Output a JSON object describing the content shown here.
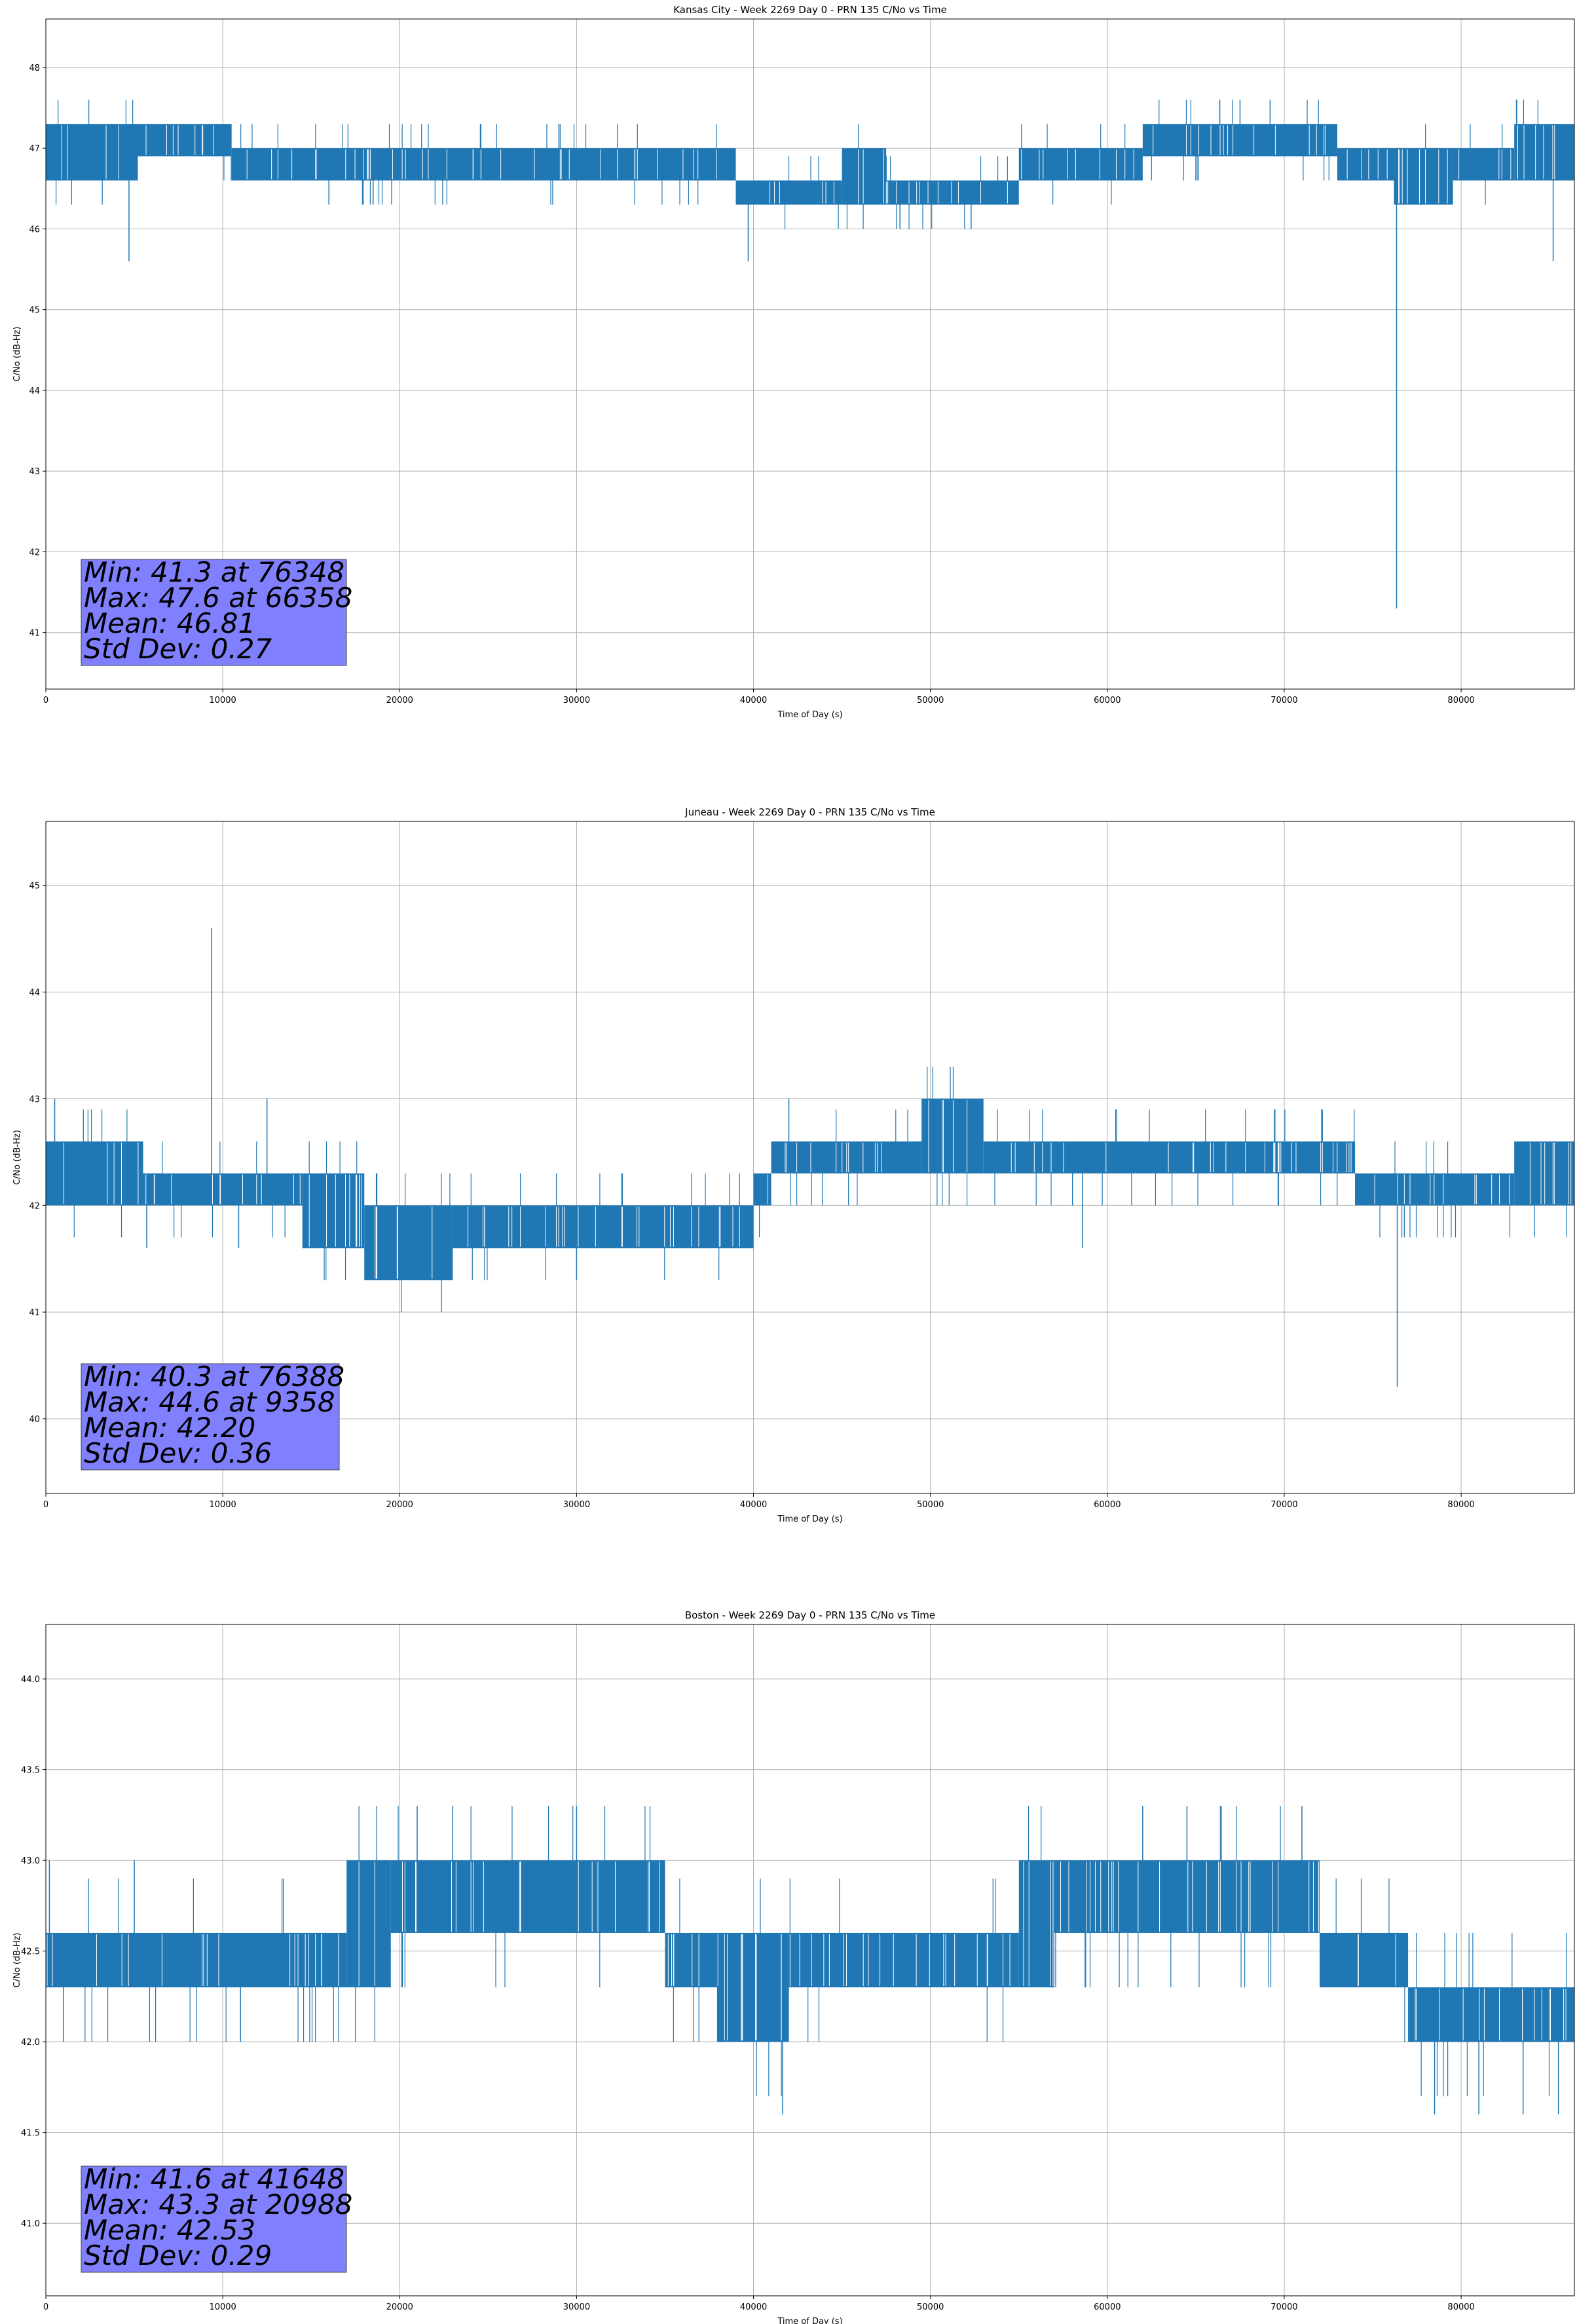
{
  "chart_data": [
    {
      "type": "line",
      "title": "Kansas City - Week 2269 Day 0 - PRN 135 C/No vs Time",
      "xlabel": "Time of Day (s)",
      "ylabel": "C/No (dB-Hz)",
      "xlim": [
        0,
        86400
      ],
      "ylim": [
        40.3,
        48.6
      ],
      "xticks": [
        0,
        10000,
        20000,
        30000,
        40000,
        50000,
        60000,
        70000,
        80000
      ],
      "xtick_labels": [
        "0",
        "10000",
        "20000",
        "30000",
        "40000",
        "50000",
        "60000",
        "70000",
        "80000"
      ],
      "yticks": [
        41,
        42,
        43,
        44,
        45,
        46,
        47,
        48
      ],
      "ytick_labels": [
        "41",
        "42",
        "43",
        "44",
        "45",
        "46",
        "47",
        "48"
      ],
      "grid": true,
      "line_color": "#1f77b4",
      "stats_box_color": "#8080ff",
      "bands": [
        {
          "x0": 0,
          "x1": 5200,
          "lo": 46.6,
          "hi": 47.3
        },
        {
          "x0": 5200,
          "x1": 10500,
          "lo": 46.9,
          "hi": 47.3
        },
        {
          "x0": 10500,
          "x1": 39000,
          "lo": 46.6,
          "hi": 47.0
        },
        {
          "x0": 39000,
          "x1": 45000,
          "lo": 46.3,
          "hi": 46.6
        },
        {
          "x0": 45000,
          "x1": 47500,
          "lo": 46.3,
          "hi": 47.0
        },
        {
          "x0": 47500,
          "x1": 55000,
          "lo": 46.3,
          "hi": 46.6
        },
        {
          "x0": 55000,
          "x1": 62000,
          "lo": 46.6,
          "hi": 47.0
        },
        {
          "x0": 62000,
          "x1": 73000,
          "lo": 46.9,
          "hi": 47.3
        },
        {
          "x0": 73000,
          "x1": 76200,
          "lo": 46.6,
          "hi": 47.0
        },
        {
          "x0": 76200,
          "x1": 79500,
          "lo": 46.3,
          "hi": 47.0
        },
        {
          "x0": 79500,
          "x1": 83000,
          "lo": 46.6,
          "hi": 47.0
        },
        {
          "x0": 83000,
          "x1": 86400,
          "lo": 46.6,
          "hi": 47.3
        }
      ],
      "spikes": [
        {
          "x": 4700,
          "y": 45.6
        },
        {
          "x": 39700,
          "y": 45.6
        },
        {
          "x": 52300,
          "y": 46.0
        },
        {
          "x": 76348,
          "y": 41.3
        },
        {
          "x": 85200,
          "y": 45.6
        },
        {
          "x": 66358,
          "y": 47.6
        },
        {
          "x": 67500,
          "y": 47.6
        },
        {
          "x": 69200,
          "y": 47.6
        },
        {
          "x": 16000,
          "y": 46.3
        },
        {
          "x": 18500,
          "y": 46.3
        },
        {
          "x": 29000,
          "y": 47.3
        }
      ],
      "stats": [
        "Min: 41.3 at 76348",
        "Max: 47.6 at 66358",
        "Mean: 46.81",
        "Std Dev: 0.27"
      ]
    },
    {
      "type": "line",
      "title": "Juneau - Week 2269 Day 0 - PRN 135 C/No vs Time",
      "xlabel": "Time of Day (s)",
      "ylabel": "C/No (dB-Hz)",
      "xlim": [
        0,
        86400
      ],
      "ylim": [
        39.3,
        45.6
      ],
      "xticks": [
        0,
        10000,
        20000,
        30000,
        40000,
        50000,
        60000,
        70000,
        80000
      ],
      "xtick_labels": [
        "0",
        "10000",
        "20000",
        "30000",
        "40000",
        "50000",
        "60000",
        "70000",
        "80000"
      ],
      "yticks": [
        40,
        41,
        42,
        43,
        44,
        45
      ],
      "ytick_labels": [
        "40",
        "41",
        "42",
        "43",
        "44",
        "45"
      ],
      "grid": true,
      "line_color": "#1f77b4",
      "stats_box_color": "#8080ff",
      "bands": [
        {
          "x0": 0,
          "x1": 5500,
          "lo": 42.0,
          "hi": 42.6
        },
        {
          "x0": 5500,
          "x1": 14500,
          "lo": 42.0,
          "hi": 42.3
        },
        {
          "x0": 14500,
          "x1": 18000,
          "lo": 41.6,
          "hi": 42.3
        },
        {
          "x0": 18000,
          "x1": 23000,
          "lo": 41.3,
          "hi": 42.0
        },
        {
          "x0": 23000,
          "x1": 40000,
          "lo": 41.6,
          "hi": 42.0
        },
        {
          "x0": 40000,
          "x1": 41000,
          "lo": 42.0,
          "hi": 42.3
        },
        {
          "x0": 41000,
          "x1": 49500,
          "lo": 42.3,
          "hi": 42.6
        },
        {
          "x0": 49500,
          "x1": 53000,
          "lo": 42.3,
          "hi": 43.0
        },
        {
          "x0": 53000,
          "x1": 74000,
          "lo": 42.3,
          "hi": 42.6
        },
        {
          "x0": 74000,
          "x1": 83000,
          "lo": 42.0,
          "hi": 42.3
        },
        {
          "x0": 83000,
          "x1": 86400,
          "lo": 42.0,
          "hi": 42.6
        }
      ],
      "spikes": [
        {
          "x": 9358,
          "y": 44.6
        },
        {
          "x": 76388,
          "y": 40.3
        },
        {
          "x": 5700,
          "y": 41.6
        },
        {
          "x": 10900,
          "y": 41.6
        },
        {
          "x": 12500,
          "y": 43.0
        },
        {
          "x": 42000,
          "y": 43.0
        },
        {
          "x": 58600,
          "y": 41.6
        },
        {
          "x": 500,
          "y": 43.0
        },
        {
          "x": 21000,
          "y": 41.3
        },
        {
          "x": 30000,
          "y": 41.3
        }
      ],
      "stats": [
        "Min: 40.3 at 76388",
        "Max: 44.6 at 9358",
        "Mean: 42.20",
        "Std Dev: 0.36"
      ]
    },
    {
      "type": "line",
      "title": "Boston - Week 2269 Day 0 - PRN 135 C/No vs Time",
      "xlabel": "Time of Day (s)",
      "ylabel": "C/No (dB-Hz)",
      "xlim": [
        0,
        86400
      ],
      "ylim": [
        40.6,
        44.3
      ],
      "xticks": [
        0,
        10000,
        20000,
        30000,
        40000,
        50000,
        60000,
        70000,
        80000
      ],
      "xtick_labels": [
        "0",
        "10000",
        "20000",
        "30000",
        "40000",
        "50000",
        "60000",
        "70000",
        "80000"
      ],
      "yticks": [
        41.0,
        41.5,
        42.0,
        42.5,
        43.0,
        43.5,
        44.0
      ],
      "ytick_labels": [
        "41.0",
        "41.5",
        "42.0",
        "42.5",
        "43.0",
        "43.5",
        "44.0"
      ],
      "grid": true,
      "line_color": "#1f77b4",
      "stats_box_color": "#8080ff",
      "bands": [
        {
          "x0": 0,
          "x1": 17000,
          "lo": 42.3,
          "hi": 42.6
        },
        {
          "x0": 17000,
          "x1": 19500,
          "lo": 42.3,
          "hi": 43.0
        },
        {
          "x0": 19500,
          "x1": 35000,
          "lo": 42.6,
          "hi": 43.0
        },
        {
          "x0": 35000,
          "x1": 38000,
          "lo": 42.3,
          "hi": 42.6
        },
        {
          "x0": 38000,
          "x1": 42000,
          "lo": 42.0,
          "hi": 42.6
        },
        {
          "x0": 42000,
          "x1": 55000,
          "lo": 42.3,
          "hi": 42.6
        },
        {
          "x0": 55000,
          "x1": 57000,
          "lo": 42.3,
          "hi": 43.0
        },
        {
          "x0": 57000,
          "x1": 72000,
          "lo": 42.6,
          "hi": 43.0
        },
        {
          "x0": 72000,
          "x1": 77000,
          "lo": 42.3,
          "hi": 42.6
        },
        {
          "x0": 77000,
          "x1": 86400,
          "lo": 42.0,
          "hi": 42.3
        }
      ],
      "spikes": [
        {
          "x": 41648,
          "y": 41.6
        },
        {
          "x": 20988,
          "y": 43.3
        },
        {
          "x": 23000,
          "y": 43.3
        },
        {
          "x": 30000,
          "y": 43.3
        },
        {
          "x": 62000,
          "y": 43.3
        },
        {
          "x": 64500,
          "y": 43.3
        },
        {
          "x": 71000,
          "y": 43.3
        },
        {
          "x": 78500,
          "y": 41.6
        },
        {
          "x": 81000,
          "y": 41.6
        },
        {
          "x": 83500,
          "y": 41.6
        },
        {
          "x": 85500,
          "y": 41.6
        },
        {
          "x": 200,
          "y": 43.0
        },
        {
          "x": 5000,
          "y": 43.0
        },
        {
          "x": 1000,
          "y": 42.0
        },
        {
          "x": 11000,
          "y": 42.0
        }
      ],
      "stats": [
        "Min: 41.6 at 41648",
        "Max: 43.3 at 20988",
        "Mean: 42.53",
        "Std Dev: 0.29"
      ]
    }
  ]
}
